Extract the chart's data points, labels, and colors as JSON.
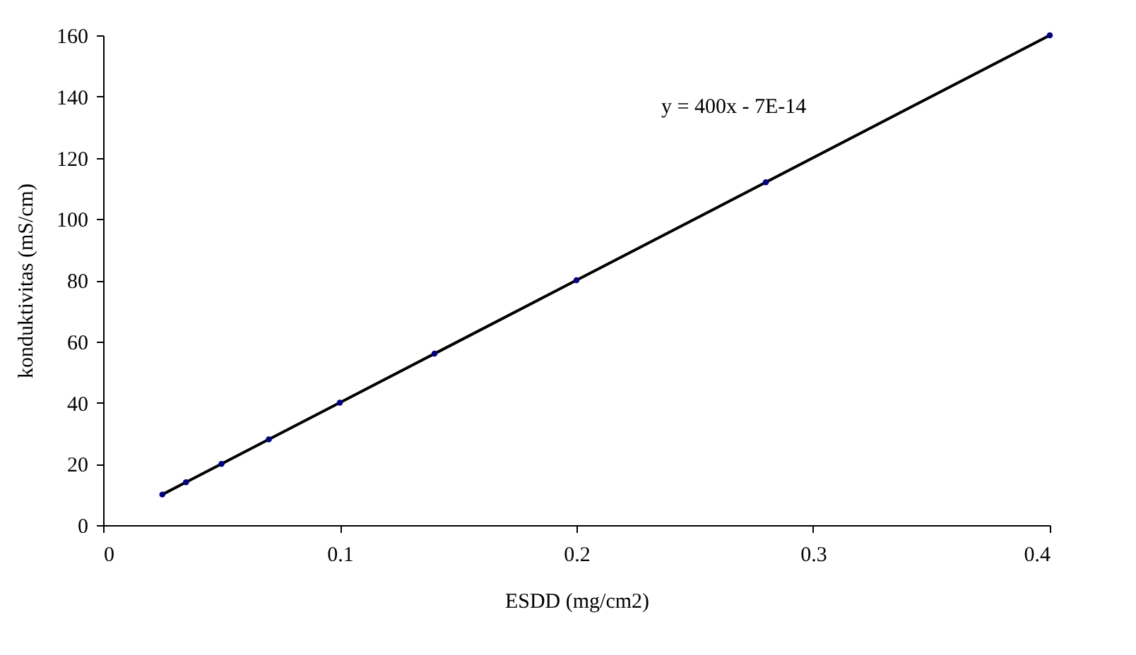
{
  "chart_data": {
    "type": "line",
    "xlabel": "ESDD (mg/cm2)",
    "ylabel": "konduktivitas (mS/cm)",
    "annotations": [
      "y = 400x - 7E-14"
    ],
    "series": [
      {
        "color": "#000080",
        "x": [
          0.025,
          0.035,
          0.05,
          0.07,
          0.1,
          0.14,
          0.2,
          0.28,
          0.4
        ],
        "values": [
          10,
          14,
          20,
          28,
          40,
          56,
          80,
          112,
          160
        ]
      }
    ],
    "xlim": [
      0,
      0.4
    ],
    "xticks": [
      0,
      0.1,
      0.2,
      0.3,
      0.4
    ],
    "ylim": [
      0,
      160
    ],
    "yticks": [
      0,
      20,
      40,
      60,
      80,
      100,
      120,
      140,
      160
    ],
    "grid": false,
    "marker": "circle",
    "line_style": "solid"
  }
}
